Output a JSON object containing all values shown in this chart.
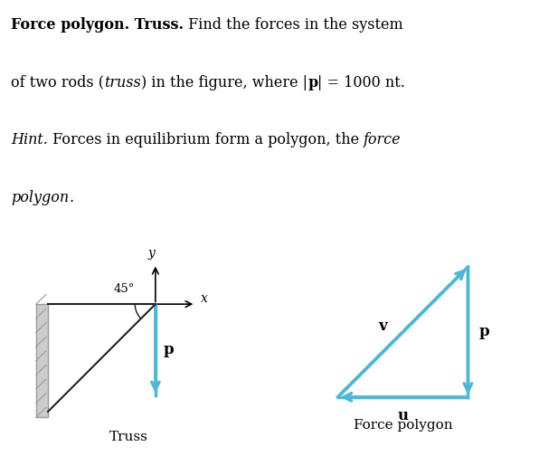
{
  "bg_color": "#ffffff",
  "arrow_color": "#4ab8d8",
  "line_color": "#222222",
  "wall_color": "#cccccc",
  "wall_edge_color": "#999999",
  "truss_label": "Truss",
  "polygon_label": "Force polygon",
  "label_p": "p",
  "label_v": "v",
  "label_u": "u",
  "label_x": "x",
  "label_y": "y",
  "label_45": "45°",
  "text_lines": [
    {
      "segments": [
        {
          "text": "Force polygon. Truss.",
          "bold": true,
          "italic": false
        },
        {
          "text": " Find the forces in the system",
          "bold": false,
          "italic": false
        }
      ]
    },
    {
      "segments": [
        {
          "text": "of two rods (",
          "bold": false,
          "italic": false
        },
        {
          "text": "truss",
          "bold": false,
          "italic": true
        },
        {
          "text": ") in the figure, where |",
          "bold": false,
          "italic": false
        },
        {
          "text": "p",
          "bold": true,
          "italic": false
        },
        {
          "text": "| = 1000 nt.",
          "bold": false,
          "italic": false
        }
      ]
    },
    {
      "segments": [
        {
          "text": "Hint.",
          "bold": false,
          "italic": true
        },
        {
          "text": " Forces in equilibrium form a polygon, the ",
          "bold": false,
          "italic": false
        },
        {
          "text": "force",
          "bold": false,
          "italic": true
        }
      ]
    },
    {
      "segments": [
        {
          "text": "polygon",
          "bold": false,
          "italic": true
        },
        {
          "text": ".",
          "bold": false,
          "italic": false
        }
      ]
    }
  ],
  "fontsize": 11.5
}
